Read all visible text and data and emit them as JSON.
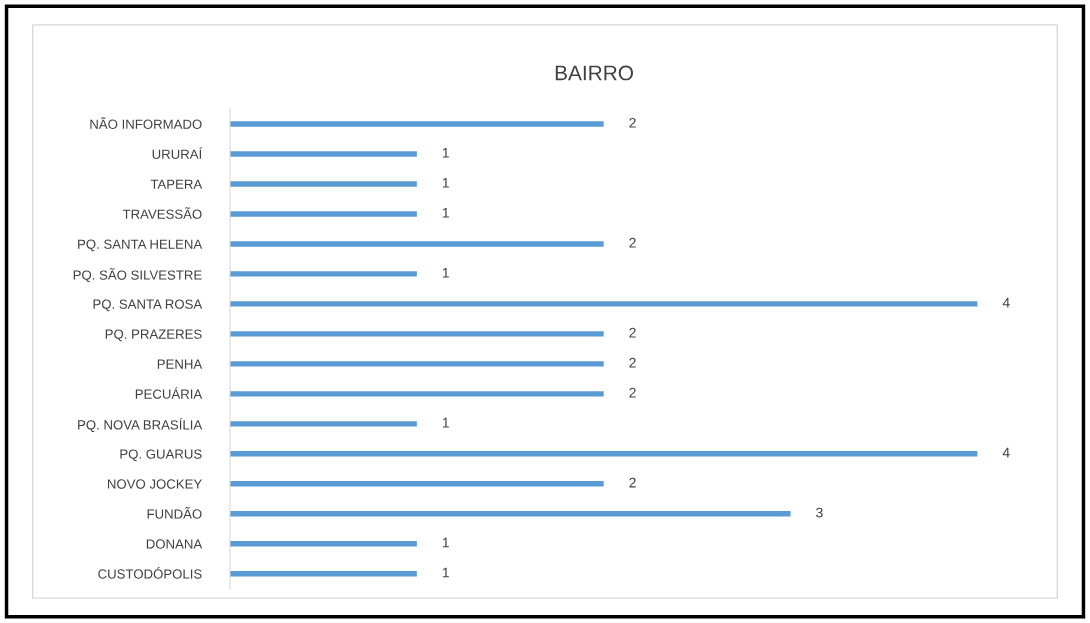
{
  "chart_data": {
    "type": "bar",
    "orientation": "horizontal",
    "title": "BAIRRO",
    "categories": [
      "NÃO INFORMADO",
      "URURAÍ",
      "TAPERA",
      "TRAVESSÃO",
      "PQ. SANTA HELENA",
      "PQ. SÃO SILVESTRE",
      "PQ. SANTA ROSA",
      "PQ. PRAZERES",
      "PENHA",
      "PECUÁRIA",
      "PQ. NOVA BRASÍLIA",
      "PQ. GUARUS",
      "NOVO JOCKEY",
      "FUNDÃO",
      "DONANA",
      "CUSTODÓPOLIS"
    ],
    "values": [
      2,
      1,
      1,
      1,
      2,
      1,
      4,
      2,
      2,
      2,
      1,
      4,
      2,
      3,
      1,
      1
    ],
    "color": "#5b9bd5",
    "data_labels": true,
    "grid": false,
    "legend": false
  }
}
